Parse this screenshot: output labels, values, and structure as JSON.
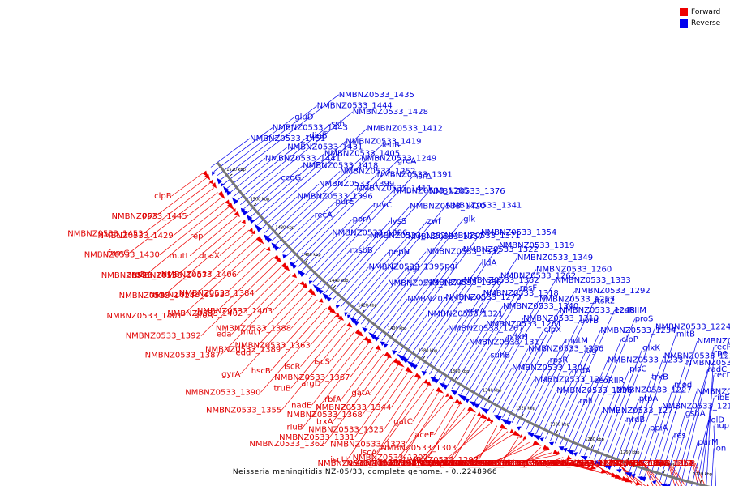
{
  "title": "Neisseria meningitidis NZ-05/33, complete genome. - 0..2248966",
  "colors": {
    "forward": "#ee0000",
    "reverse": "#0000ee",
    "backbone": "#777777"
  },
  "legend": {
    "forward": "Forward",
    "reverse": "Reverse"
  },
  "ticks": [
    "1520 kbp",
    "1500 kbp",
    "1480 kbp",
    "1460 kbp",
    "1440 kbp",
    "1420 kbp",
    "1400 kbp",
    "1380 kbp",
    "1360 kbp",
    "1340 kbp",
    "1320 kbp",
    "1300 kbp",
    "1280 kbp",
    "1260 kbp",
    "1240 kbp",
    "1220 kbp"
  ],
  "labels": [
    {
      "t": "clpB",
      "s": "f"
    },
    {
      "t": "NMBNZ0533_1451",
      "s": "r"
    },
    {
      "t": "ppx",
      "s": "f"
    },
    {
      "t": "NMBNZ0533_1453",
      "s": "f"
    },
    {
      "t": "NMBNZ0533_1443",
      "s": "r"
    },
    {
      "t": "gluD",
      "s": "r"
    },
    {
      "t": "NMBNZ0533_1444",
      "s": "r"
    },
    {
      "t": "fumC",
      "s": "f"
    },
    {
      "t": "NMBNZ0533_1445",
      "s": "f"
    },
    {
      "t": "NMBNZ0533_1435",
      "s": "r"
    },
    {
      "t": "NMBNZ0533_1441",
      "s": "r"
    },
    {
      "t": "NMBNZ0533_1429",
      "s": "f"
    },
    {
      "t": "NMBNZ0533_1430",
      "s": "f"
    },
    {
      "t": "aroD",
      "s": "f"
    },
    {
      "t": "rep",
      "s": "f"
    },
    {
      "t": "NMBNZ0533_1431",
      "s": "r"
    },
    {
      "t": "dinB",
      "s": "r"
    },
    {
      "t": "mutL",
      "s": "f"
    },
    {
      "t": "ssb",
      "s": "r"
    },
    {
      "t": "NMBNZ0533_1428",
      "s": "r"
    },
    {
      "t": "NMBNZ0533_1415",
      "s": "f"
    },
    {
      "t": "ccoG",
      "s": "r"
    },
    {
      "t": "tkt",
      "s": "f"
    },
    {
      "t": "dnaX",
      "s": "f"
    },
    {
      "t": "NMBNZ0533_1407",
      "s": "f"
    },
    {
      "t": "NMBNZ0533_1418",
      "s": "r"
    },
    {
      "t": "NMBNZ0533_1405",
      "s": "r"
    },
    {
      "t": "NMBNZ0533_1414",
      "s": "f"
    },
    {
      "t": "NMBNZ0533_1401",
      "s": "f"
    },
    {
      "t": "NMBNZ0533_1419",
      "s": "r"
    },
    {
      "t": "NMBNZ0533_1406",
      "s": "f"
    },
    {
      "t": "NMBNZ0533_1393",
      "s": "f"
    },
    {
      "t": "aroA",
      "s": "f"
    },
    {
      "t": "NMBNZ0533_1392",
      "s": "f"
    },
    {
      "t": "NMBNZ0533_1412",
      "s": "r"
    },
    {
      "t": "NMBNZ0533_1396",
      "s": "r"
    },
    {
      "t": "NMBNZ0533_1384",
      "s": "f"
    },
    {
      "t": "NMBNZ0533_1402",
      "s": "f"
    },
    {
      "t": "eda",
      "s": "f"
    },
    {
      "t": "NMBNZ0533_1387",
      "s": "f"
    },
    {
      "t": "NMBNZ0533_1403",
      "s": "f"
    },
    {
      "t": "mutY",
      "s": "f"
    },
    {
      "t": "edd",
      "s": "f"
    },
    {
      "t": "gyrA",
      "s": "f"
    },
    {
      "t": "NMBNZ0533_1388",
      "s": "f"
    },
    {
      "t": "NMBNZ0533_1389",
      "s": "f"
    },
    {
      "t": "hscB",
      "s": "f"
    },
    {
      "t": "NMBNZ0533_1390",
      "s": "f"
    },
    {
      "t": "NMBNZ0533_1363",
      "s": "f"
    },
    {
      "t": "NMBNZ0533_1399",
      "s": "r"
    },
    {
      "t": "iscR",
      "s": "f"
    },
    {
      "t": "truB",
      "s": "f"
    },
    {
      "t": "NMBNZ0533_1355",
      "s": "f"
    },
    {
      "t": "iscS",
      "s": "f"
    },
    {
      "t": "argD",
      "s": "f"
    },
    {
      "t": "nadE",
      "s": "f"
    },
    {
      "t": "rluB",
      "s": "f"
    },
    {
      "t": "NMBNZ0533_1367",
      "s": "f"
    },
    {
      "t": "rbfA",
      "s": "f"
    },
    {
      "t": "trxA",
      "s": "f"
    },
    {
      "t": "NMBNZ0533_1362",
      "s": "f"
    },
    {
      "t": "gatA",
      "s": "f"
    },
    {
      "t": "NMBNZ0533_1368",
      "s": "f"
    },
    {
      "t": "NMBNZ0533_1331",
      "s": "f"
    },
    {
      "t": "iscU",
      "s": "f"
    },
    {
      "t": "NMBNZ0533_1344",
      "s": "f"
    },
    {
      "t": "NMBNZ0533_1325",
      "s": "f"
    },
    {
      "t": "iscA",
      "s": "f"
    },
    {
      "t": "ascD",
      "s": "f"
    },
    {
      "t": "gatC",
      "s": "f"
    },
    {
      "t": "NMBNZ0533_1323",
      "s": "f"
    },
    {
      "t": "trmB",
      "s": "f"
    },
    {
      "t": "NMBNZ0533_1335",
      "s": "f"
    },
    {
      "t": "aceE",
      "s": "f"
    },
    {
      "t": "NMBNZ0533_1307",
      "s": "f"
    },
    {
      "t": "NMBNZ0533_1336",
      "s": "f"
    },
    {
      "t": "aceF",
      "s": "f"
    },
    {
      "t": "NMBNZ0533_1303",
      "s": "f"
    },
    {
      "t": "ispG",
      "s": "f"
    },
    {
      "t": "gatB",
      "s": "f"
    },
    {
      "t": "NMBNZ0533_1324",
      "s": "f"
    },
    {
      "t": "NMBNZ0533_1297",
      "s": "f"
    },
    {
      "t": "NMBNZ0533_1330",
      "s": "f"
    },
    {
      "t": "uvrC",
      "s": "f"
    },
    {
      "t": "NMBNZ0533_1288",
      "s": "f"
    },
    {
      "t": "NMBNZ0533_1337",
      "s": "f"
    },
    {
      "t": "NMBNZ0533_1305",
      "s": "f"
    },
    {
      "t": "NMBNZ0533_1282",
      "s": "f"
    },
    {
      "t": "ftsB",
      "s": "f"
    },
    {
      "t": "NMBNZ0533_1338",
      "s": "f"
    },
    {
      "t": "NMBNZ0533_1313",
      "s": "f"
    },
    {
      "t": "NMBNZ0533_1286",
      "s": "f"
    },
    {
      "t": "mfd",
      "s": "f"
    },
    {
      "t": "NMBNZ0533_1339",
      "s": "f"
    },
    {
      "t": "NMBNZ0533_1315",
      "s": "f"
    },
    {
      "t": "pssA",
      "s": "f"
    },
    {
      "t": "rsuA",
      "s": "f"
    },
    {
      "t": "NMBNZ0533_1266",
      "s": "f"
    },
    {
      "t": "ndk",
      "s": "f"
    },
    {
      "t": "panD",
      "s": "f"
    },
    {
      "t": "cmk",
      "s": "f"
    },
    {
      "t": "NMBNZ0533_1252",
      "s": "r"
    },
    {
      "t": "rpsA",
      "s": "f"
    },
    {
      "t": "kdsA",
      "s": "f"
    },
    {
      "t": "gcr",
      "s": "f"
    },
    {
      "t": "NMBNZ0533_1295",
      "s": "f"
    },
    {
      "t": "NMBNZ0533_1274",
      "s": "f"
    },
    {
      "t": "NMBNZ0533_1245",
      "s": "f"
    },
    {
      "t": "pilF",
      "s": "f"
    },
    {
      "t": "ihfB",
      "s": "f"
    },
    {
      "t": "eno",
      "s": "f"
    },
    {
      "t": "pacA",
      "s": "f"
    },
    {
      "t": "aspA",
      "s": "f"
    },
    {
      "t": "leuC",
      "s": "f"
    },
    {
      "t": "fpr",
      "s": "f"
    },
    {
      "t": "adhC",
      "s": "f"
    },
    {
      "t": "NMBNZ0533_1249",
      "s": "r"
    },
    {
      "t": "NMBNZ0533_1226",
      "s": "f"
    },
    {
      "t": "leuB",
      "s": "r"
    },
    {
      "t": "thrC",
      "s": "f"
    },
    {
      "t": "NMBNZ0533_1211",
      "s": "f"
    },
    {
      "t": "ribA",
      "s": "f"
    },
    {
      "t": "NMBNZ0533_1198",
      "s": "f"
    },
    {
      "t": "recA",
      "s": "r"
    },
    {
      "t": "purE",
      "s": "r"
    },
    {
      "t": "NMBNZ0533_1411",
      "s": "r"
    },
    {
      "t": "NMBNZ0533_1391",
      "s": "r"
    },
    {
      "t": "greA",
      "s": "r"
    },
    {
      "t": "NMBNZ0533_1386",
      "s": "r"
    },
    {
      "t": "porA",
      "s": "r"
    },
    {
      "t": "ruvC",
      "s": "r"
    },
    {
      "t": "NMBNZ0533_1385",
      "s": "r"
    },
    {
      "t": "hsrA",
      "s": "r"
    },
    {
      "t": "msbB",
      "s": "r"
    },
    {
      "t": "NMBNZ0533_1382",
      "s": "r"
    },
    {
      "t": "lysS",
      "s": "r"
    },
    {
      "t": "NMBNZ0533_1420",
      "s": "r"
    },
    {
      "t": "NMBNZ0533_1376",
      "s": "r"
    },
    {
      "t": "NMBNZ0533_1395",
      "s": "r"
    },
    {
      "t": "pepN",
      "s": "r"
    },
    {
      "t": "NMBNZ0533_1357",
      "s": "r"
    },
    {
      "t": "zwf",
      "s": "r"
    },
    {
      "t": "NMBNZ0533_1341",
      "s": "r"
    },
    {
      "t": "NMBNZ0533_1374",
      "s": "r"
    },
    {
      "t": "pgl",
      "s": "r"
    },
    {
      "t": "NMBNZ0533_1332",
      "s": "r"
    },
    {
      "t": "NMBNZ0533_1371",
      "s": "r"
    },
    {
      "t": "glk",
      "s": "r"
    },
    {
      "t": "NMBNZ0533_1326",
      "s": "r"
    },
    {
      "t": "NMBNZ0533_1356",
      "s": "r"
    },
    {
      "t": "pgi",
      "s": "r"
    },
    {
      "t": "NMBNZ0533_1322",
      "s": "r"
    },
    {
      "t": "NMBNZ0533_1354",
      "s": "r"
    },
    {
      "t": "NMBNZ0533_1321",
      "s": "r"
    },
    {
      "t": "NMBNZ0533_1270",
      "s": "r"
    },
    {
      "t": "NMBNZ0533_1352",
      "s": "r"
    },
    {
      "t": "lldA",
      "s": "r"
    },
    {
      "t": "NMBNZ0533_1319",
      "s": "r"
    },
    {
      "t": "NMBNZ0533_1267",
      "s": "r"
    },
    {
      "t": "xseA",
      "s": "r"
    },
    {
      "t": "NMBNZ0533_1318",
      "s": "r"
    },
    {
      "t": "NMBNZ0533_1262",
      "s": "r"
    },
    {
      "t": "NMBNZ0533_1349",
      "s": "r"
    },
    {
      "t": "NMBNZ0533_1317",
      "s": "r"
    },
    {
      "t": "NMBNZ0533_1261",
      "s": "r"
    },
    {
      "t": "NMBNZ0533_1340",
      "s": "r"
    },
    {
      "t": "rpsF",
      "s": "r"
    },
    {
      "t": "NMBNZ0533_1260",
      "s": "r"
    },
    {
      "t": "suhB",
      "s": "r"
    },
    {
      "t": "pdxH",
      "s": "r"
    },
    {
      "t": "NMBNZ0533_1310",
      "s": "r"
    },
    {
      "t": "NMBNZ0533_1257",
      "s": "r"
    },
    {
      "t": "NMBNZ0533_1333",
      "s": "r"
    },
    {
      "t": "NMBNZ0533_1304",
      "s": "r"
    },
    {
      "t": "NMBNZ0533_1256",
      "s": "r"
    },
    {
      "t": "clpX",
      "s": "r"
    },
    {
      "t": "NMBNZ0533_1248",
      "s": "r"
    },
    {
      "t": "NMBNZ0533_1292",
      "s": "r"
    },
    {
      "t": "NMBNZ0533_1247",
      "s": "r"
    },
    {
      "t": "rpsR",
      "s": "r"
    },
    {
      "t": "mutM",
      "s": "r"
    },
    {
      "t": "uvrB",
      "s": "r"
    },
    {
      "t": "ftsK2",
      "s": "r"
    },
    {
      "t": "NMBNZ0533_1236",
      "s": "r"
    },
    {
      "t": "nrdA",
      "s": "r"
    },
    {
      "t": "tig",
      "s": "r"
    },
    {
      "t": "NMBNZ0533_1234",
      "s": "r"
    },
    {
      "t": "ecoRIIM",
      "s": "r"
    },
    {
      "t": "rplI",
      "s": "r"
    },
    {
      "t": "ecoRIIR",
      "s": "r"
    },
    {
      "t": "NMBNZ0533_1233",
      "s": "r"
    },
    {
      "t": "clpP",
      "s": "r"
    },
    {
      "t": "proS",
      "s": "r"
    },
    {
      "t": "NMBNZ0533_1277",
      "s": "r"
    },
    {
      "t": "NMBNZ0533_1227",
      "s": "r"
    },
    {
      "t": "plsC",
      "s": "r"
    },
    {
      "t": "glxK",
      "s": "r"
    },
    {
      "t": "NMBNZ0533_1224",
      "s": "r"
    },
    {
      "t": "nrdB",
      "s": "r"
    },
    {
      "t": "ptpA",
      "s": "r"
    },
    {
      "t": "trxB",
      "s": "r"
    },
    {
      "t": "NMBNZ0533_1223",
      "s": "r"
    },
    {
      "t": "mltB",
      "s": "r"
    },
    {
      "t": "ppiA",
      "s": "r"
    },
    {
      "t": "NMBNZ0533_1214",
      "s": "r"
    },
    {
      "t": "mod",
      "s": "r"
    },
    {
      "t": "NMBNZ0533_1285",
      "s": "r"
    },
    {
      "t": "NMBNZ0533_1212",
      "s": "r"
    },
    {
      "t": "res",
      "s": "r"
    },
    {
      "t": "gshA",
      "s": "r"
    },
    {
      "t": "NMBNZ0533_1205",
      "s": "r"
    },
    {
      "t": "radC",
      "s": "r"
    },
    {
      "t": "recR",
      "s": "r"
    },
    {
      "t": "purM",
      "s": "r"
    },
    {
      "t": "lolD",
      "s": "r"
    },
    {
      "t": "ribE",
      "s": "r"
    },
    {
      "t": "recD",
      "s": "r"
    },
    {
      "t": "rpe",
      "s": "r"
    },
    {
      "t": "lon",
      "s": "r"
    },
    {
      "t": "hupB",
      "s": "r"
    }
  ]
}
